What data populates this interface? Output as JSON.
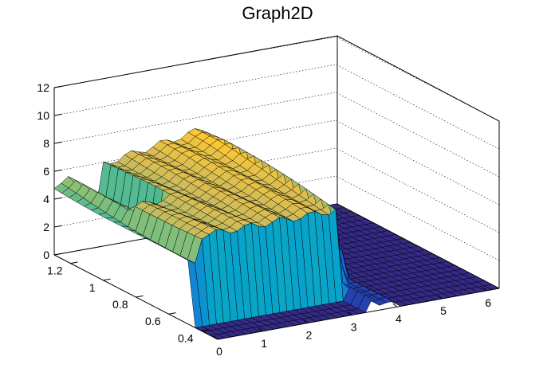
{
  "chart_data": {
    "type": "surface",
    "title": "Graph2D",
    "xlabel": "",
    "ylabel": "",
    "zlabel": "",
    "xlim": [
      0,
      6.28
    ],
    "ylim": [
      0.3,
      1.3
    ],
    "zlim": [
      0,
      12
    ],
    "x_ticks": [
      "0",
      "1",
      "2",
      "3",
      "4",
      "5",
      "6"
    ],
    "y_ticks": [
      "0.4",
      "0.6",
      "0.8",
      "1",
      "1.2"
    ],
    "z_ticks": [
      "0",
      "2",
      "4",
      "6",
      "8",
      "10",
      "12"
    ],
    "grid": true,
    "colormap": [
      "#352a87",
      "#0f5cdd",
      "#1481d6",
      "#06a4ca",
      "#2eb7a4",
      "#87bf77",
      "#d1bb59",
      "#fec832",
      "#f9fb0e"
    ],
    "surface_description": {
      "high_plateau_x": [
        0.0,
        3.3
      ],
      "high_plateau_y_min": 0.45,
      "high_plateau_z": 6.2,
      "back_ridge_z": 8.0,
      "low_floor_z": 0.0,
      "dip_near_x": 3.8
    }
  }
}
